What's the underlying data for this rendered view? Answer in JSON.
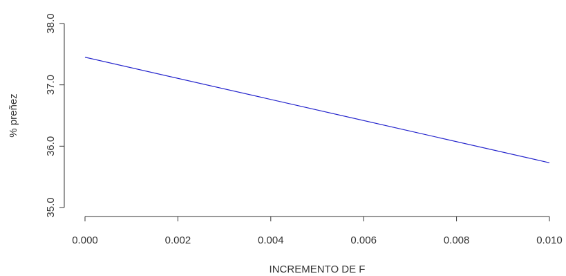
{
  "chart_data": {
    "type": "line",
    "xlabel": "INCREMENTO DE F",
    "ylabel": "% preñez",
    "xlim": [
      0,
      0.01
    ],
    "ylim": [
      35,
      38
    ],
    "xticks": [
      "0.000",
      "0.002",
      "0.004",
      "0.006",
      "0.008",
      "0.010"
    ],
    "yticks": [
      "35.0",
      "36.0",
      "37.0",
      "38.0"
    ],
    "grid": false,
    "legend": "none",
    "series": [
      {
        "color": "#2222cc",
        "x": [
          0,
          0.01
        ],
        "y": [
          37.45,
          35.73
        ]
      }
    ]
  }
}
